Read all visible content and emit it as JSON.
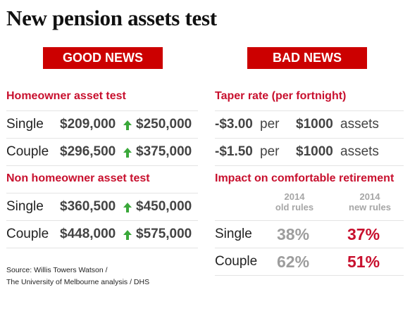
{
  "title": "New pension assets test",
  "good": {
    "banner": "GOOD NEWS",
    "homeowner": {
      "heading": "Homeowner asset test",
      "rows": [
        {
          "label": "Single",
          "from": "$209,000",
          "to": "$250,000"
        },
        {
          "label": "Couple",
          "from": "$296,500",
          "to": "$375,000"
        }
      ]
    },
    "non_homeowner": {
      "heading": "Non homeowner asset test",
      "rows": [
        {
          "label": "Single",
          "from": "$360,500",
          "to": "$450,000"
        },
        {
          "label": "Couple",
          "from": "$448,000",
          "to": "$575,000"
        }
      ]
    },
    "arrow_color": "#3aa83a"
  },
  "bad": {
    "banner": "BAD NEWS",
    "taper": {
      "heading": "Taper rate (per fortnight)",
      "rows": [
        {
          "rate": "-$3.00",
          "per": "per",
          "amount": "$1000",
          "unit": "assets"
        },
        {
          "rate": "-$1.50",
          "per": "per",
          "amount": "$1000",
          "unit": "assets"
        }
      ]
    },
    "impact": {
      "heading": "Impact on comfortable retirement",
      "col_old": {
        "year": "2014",
        "sub": "old rules"
      },
      "col_new": {
        "year": "2014",
        "sub": "new rules"
      },
      "rows": [
        {
          "label": "Single",
          "old": "38%",
          "new": "37%"
        },
        {
          "label": "Couple",
          "old": "62%",
          "new": "51%"
        }
      ]
    }
  },
  "source": {
    "line1": "Source: Willis Towers Watson /",
    "line2": "The University of Melbourne analysis / DHS"
  },
  "colors": {
    "banner": "#cc0000",
    "heading": "#c8102e",
    "up_arrow": "#3aa83a"
  }
}
